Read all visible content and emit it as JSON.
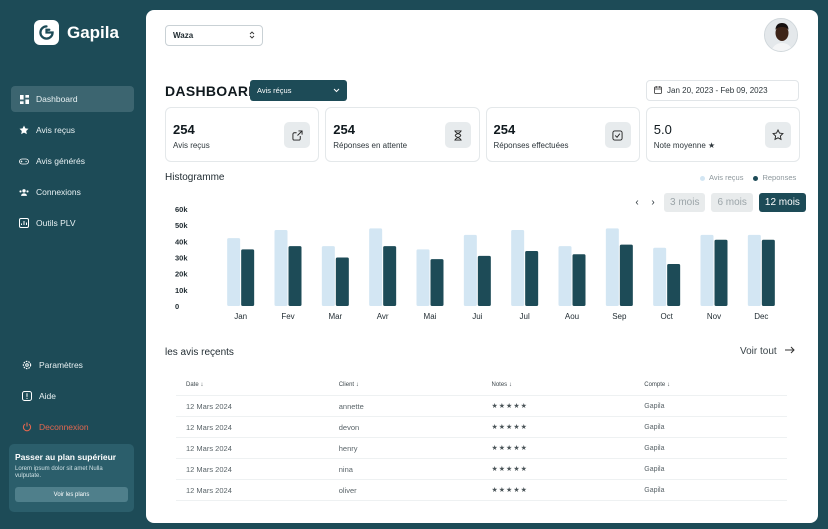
{
  "brand": {
    "name": "Gapila"
  },
  "sidebar": {
    "items": [
      {
        "label": "Dashboard",
        "icon": "grid-icon",
        "active": true
      },
      {
        "label": "Avis reçus",
        "icon": "star-icon",
        "active": false
      },
      {
        "label": "Avis générés",
        "icon": "gamepad-icon",
        "active": false
      },
      {
        "label": "Connexions",
        "icon": "users-icon",
        "active": false
      },
      {
        "label": "Outils PLV",
        "icon": "chart-icon",
        "active": false
      }
    ],
    "bottom_items": [
      {
        "label": "Paramètres",
        "icon": "gear-icon"
      },
      {
        "label": "Aide",
        "icon": "help-icon"
      },
      {
        "label": "Deconnexion",
        "icon": "logout-icon"
      }
    ],
    "upgrade": {
      "title": "Passer au plan supérieur",
      "description": "Lorem ipsum dolor sit amet Nulla vulputate.",
      "button": "Voir les plans"
    }
  },
  "header": {
    "store_select": "Waza",
    "title": "DASHBOARD",
    "type_select": "Avis réçus",
    "date_range": "Jan 20, 2023 - Feb 09, 2023"
  },
  "cards": [
    {
      "value": "254",
      "label": "Avis reçus",
      "icon": "share-icon"
    },
    {
      "value": "254",
      "label": "Réponses en attente",
      "icon": "hourglass-icon"
    },
    {
      "value": "254",
      "label": "Réponses effectuées",
      "icon": "check-square-icon"
    },
    {
      "value": "5.0",
      "label": "Note moyenne ★",
      "icon": "star-icon"
    }
  ],
  "histogram": {
    "title": "Histogramme",
    "legend": [
      "Avis reçus",
      "Reponses"
    ],
    "periods": [
      "3 mois",
      "6 mois",
      "12 mois"
    ],
    "active_period": "12 mois"
  },
  "chart_data": {
    "type": "bar",
    "categories": [
      "Jan",
      "Fev",
      "Mar",
      "Avr",
      "Mai",
      "Jui",
      "Jul",
      "Aou",
      "Sep",
      "Oct",
      "Nov",
      "Dec"
    ],
    "series": [
      {
        "name": "Avis reçus",
        "values": [
          42,
          47,
          37,
          48,
          35,
          44,
          47,
          37,
          48,
          36,
          44,
          44
        ]
      },
      {
        "name": "Reponses",
        "values": [
          35,
          37,
          30,
          37,
          29,
          31,
          34,
          32,
          38,
          26,
          41,
          41
        ]
      }
    ],
    "yticks": [
      "60k",
      "50k",
      "40k",
      "30k",
      "20k",
      "10k",
      "0"
    ],
    "ylim": [
      0,
      60
    ],
    "colors": {
      "Avis reçus": "#d3e6f3",
      "Reponses": "#1d4b57"
    }
  },
  "recent": {
    "title": "les avis reçents",
    "see_all": "Voir tout",
    "columns": [
      "Date",
      "Client",
      "Notes",
      "Compte"
    ],
    "rows": [
      {
        "date": "12 Mars 2024",
        "client": "annette",
        "notes": "★★★★★",
        "compte": "Gapila"
      },
      {
        "date": "12 Mars 2024",
        "client": "devon",
        "notes": "★★★★★",
        "compte": "Gapila"
      },
      {
        "date": "12 Mars 2024",
        "client": "henry",
        "notes": "★★★★★",
        "compte": "Gapila"
      },
      {
        "date": "12 Mars 2024",
        "client": "nina",
        "notes": "★★★★★",
        "compte": "Gapila"
      },
      {
        "date": "12 Mars 2024",
        "client": "oliver",
        "notes": "★★★★★",
        "compte": "Gapila"
      }
    ]
  }
}
